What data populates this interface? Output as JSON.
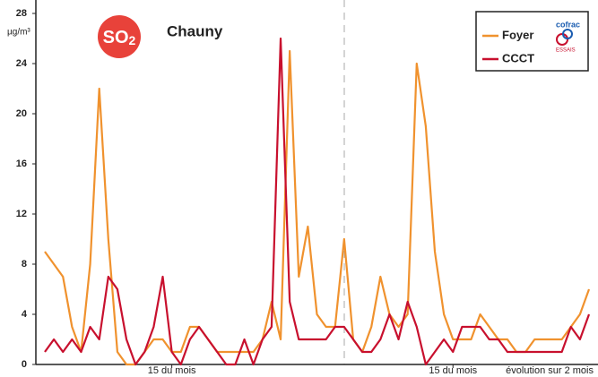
{
  "chart_data": {
    "type": "line",
    "title": "Chauny",
    "badge": "SO",
    "badge_sub": "2",
    "unit": "µg/m³",
    "annotation": "évolution sur 2 mois",
    "logo_top": "cofrac",
    "logo_bottom": "ESSAIS",
    "legend": "top-right",
    "grid": false,
    "categories": [
      null,
      null,
      null,
      null,
      null,
      null,
      null,
      null,
      null,
      null,
      null,
      null,
      null,
      null,
      "15 du mois",
      null,
      null,
      null,
      null,
      null,
      null,
      null,
      null,
      null,
      null,
      null,
      null,
      null,
      null,
      null,
      null,
      null,
      null,
      null,
      null,
      null,
      null,
      null,
      null,
      null,
      null,
      null,
      null,
      null,
      null,
      "15 du mois",
      null,
      null,
      null,
      null,
      null,
      null,
      null,
      null,
      null,
      null,
      null,
      null,
      null,
      null,
      null
    ],
    "series": [
      {
        "name": "Foyer",
        "color": "#f0922e",
        "values": [
          9,
          8,
          7,
          3,
          1,
          8,
          22,
          10,
          1,
          0,
          0,
          1,
          2,
          2,
          1,
          1,
          3,
          3,
          2,
          1,
          1,
          1,
          1,
          1,
          2,
          5,
          2,
          25,
          7,
          11,
          4,
          3,
          3,
          10,
          2,
          1,
          3,
          7,
          4,
          3,
          4,
          24,
          19,
          9,
          4,
          2,
          2,
          2,
          4,
          3,
          2,
          2,
          1,
          1,
          2,
          2,
          2,
          2,
          3,
          4,
          6
        ]
      },
      {
        "name": "CCCT",
        "color": "#c8102e",
        "values": [
          1,
          2,
          1,
          2,
          1,
          3,
          2,
          7,
          6,
          2,
          0,
          1,
          3,
          7,
          1,
          0,
          2,
          3,
          2,
          1,
          0,
          0,
          2,
          0,
          2,
          3,
          26,
          5,
          2,
          2,
          2,
          2,
          3,
          3,
          2,
          1,
          1,
          2,
          4,
          2,
          5,
          3,
          0,
          1,
          2,
          1,
          3,
          3,
          3,
          2,
          2,
          1,
          1,
          1,
          1,
          1,
          1,
          1,
          3,
          2,
          4
        ]
      }
    ],
    "ylim": [
      0,
      28
    ],
    "yticks": [
      0,
      4,
      8,
      12,
      16,
      20,
      24,
      28
    ]
  }
}
